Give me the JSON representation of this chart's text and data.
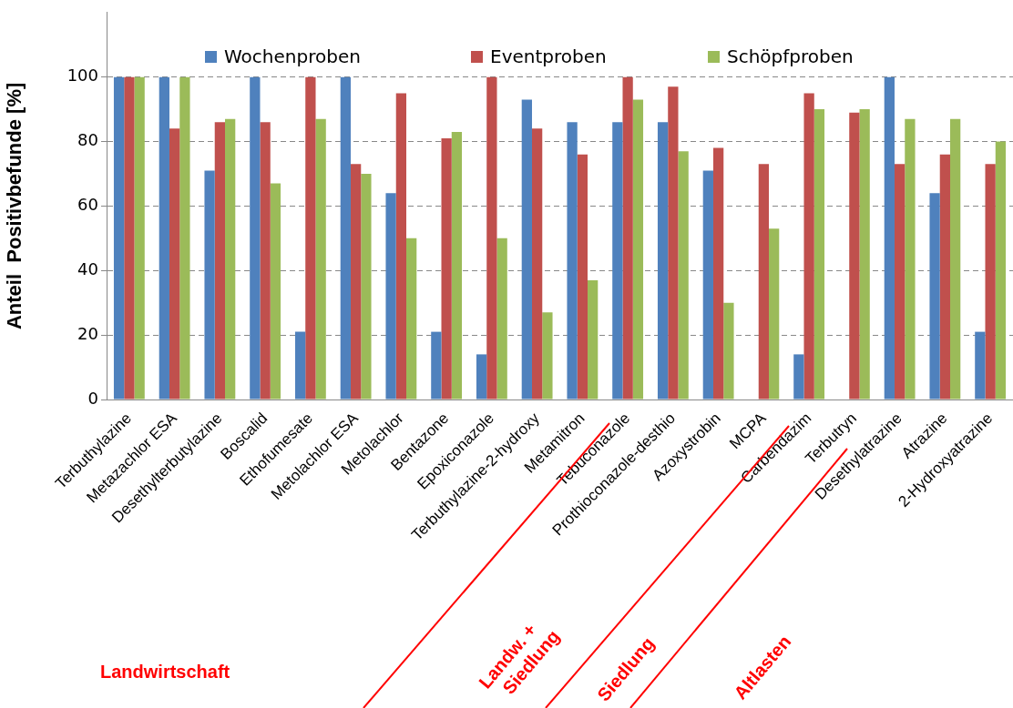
{
  "chart_data": {
    "type": "bar",
    "ylabel": "Anteil  Positivbefunde [%]",
    "categories": [
      "Terbuthylazine",
      "Metazachlor ESA",
      "Desethylterbutylazine",
      "Boscalid",
      "Ethofumesate",
      "Metolachlor ESA",
      "Metolachlor",
      "Bentazone",
      "Epoxiconazole",
      "Terbuthylazine-2-hydroxy",
      "Metamitron",
      "Tebuconazole",
      "Prothioconazole-desthio",
      "Azoxystrobin",
      "MCPA",
      "Carbendazim",
      "Terbutryn",
      "Desethylatrazine",
      "Atrazine",
      "2-Hydroxyatrazine"
    ],
    "series": [
      {
        "name": "Wochenproben",
        "color": "#4f81bd",
        "values": [
          100,
          100,
          71,
          100,
          21,
          100,
          64,
          21,
          14,
          93,
          86,
          86,
          86,
          71,
          0,
          14,
          0,
          100,
          64,
          21
        ]
      },
      {
        "name": "Eventproben",
        "color": "#c0504d",
        "values": [
          100,
          84,
          86,
          86,
          100,
          73,
          95,
          81,
          100,
          84,
          76,
          100,
          97,
          78,
          73,
          95,
          89,
          73,
          76,
          73
        ]
      },
      {
        "name": "Schöpfproben",
        "color": "#9bbb59",
        "values": [
          100,
          100,
          87,
          67,
          87,
          70,
          50,
          83,
          50,
          27,
          37,
          93,
          77,
          30,
          53,
          90,
          90,
          87,
          87,
          80
        ]
      }
    ],
    "ylim": [
      0,
      120
    ],
    "yticks": [
      0,
      20,
      40,
      60,
      80,
      100
    ],
    "grid": "y",
    "legend": "top",
    "annotations": [
      "Landwirtschaft",
      "Landw. + Siedlung",
      "Siedlung",
      "Altlasten"
    ]
  }
}
